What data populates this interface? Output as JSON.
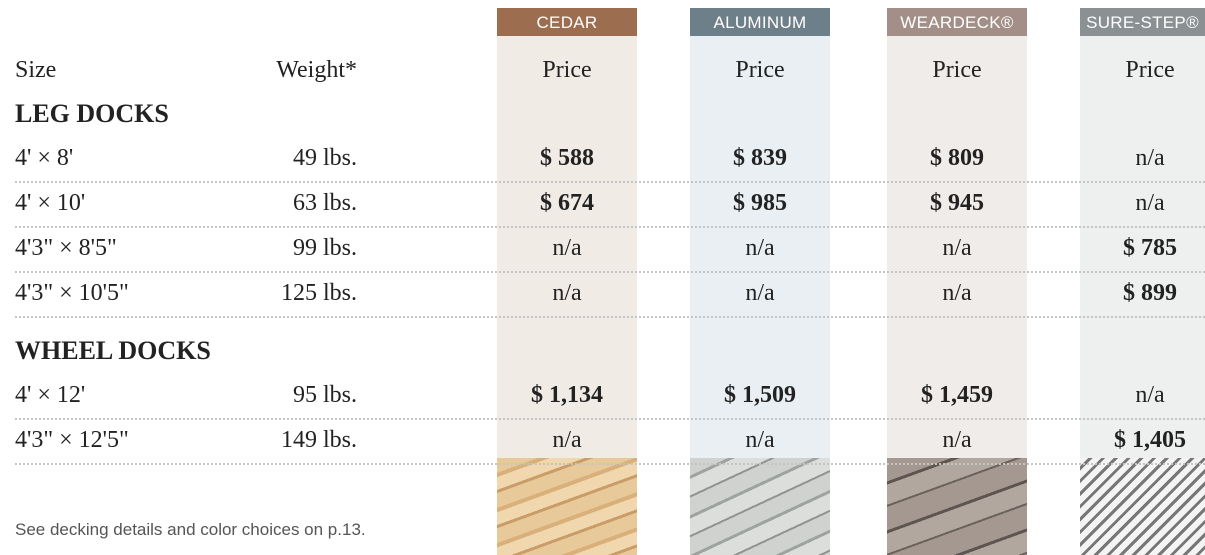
{
  "columns": [
    "CEDAR",
    "ALUMINUM",
    "WEARDECK®",
    "SURE-STEP®"
  ],
  "header": {
    "size": "Size",
    "weight": "Weight*",
    "prices": [
      "Price",
      "Price",
      "Price",
      "Price"
    ]
  },
  "sections": [
    {
      "title": "LEG DOCKS",
      "rows": [
        {
          "size": "4' × 8'",
          "weight": "49 lbs.",
          "prices": [
            "$ 588",
            "$ 839",
            "$ 809",
            "n/a"
          ]
        },
        {
          "size": "4' × 10'",
          "weight": "63 lbs.",
          "prices": [
            "$ 674",
            "$ 985",
            "$ 945",
            "n/a"
          ]
        },
        {
          "size": "4'3\" × 8'5\"",
          "weight": "99 lbs.",
          "prices": [
            "n/a",
            "n/a",
            "n/a",
            "$ 785"
          ]
        },
        {
          "size": "4'3\" × 10'5\"",
          "weight": "125 lbs.",
          "prices": [
            "n/a",
            "n/a",
            "n/a",
            "$ 899"
          ]
        }
      ]
    },
    {
      "title": "WHEEL DOCKS",
      "rows": [
        {
          "size": "4' × 12'",
          "weight": "95 lbs.",
          "prices": [
            "$ 1,134",
            "$ 1,509",
            "$ 1,459",
            "n/a"
          ]
        },
        {
          "size": "4'3\" × 12'5\"",
          "weight": "149 lbs.",
          "prices": [
            "n/a",
            "n/a",
            "n/a",
            "$ 1,405"
          ]
        }
      ]
    }
  ],
  "footnote": "See decking details and color choices on p.13."
}
